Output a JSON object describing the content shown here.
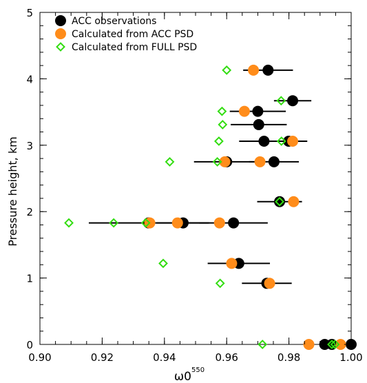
{
  "chart_data": {
    "type": "scatter",
    "xlabel": "ω0",
    "xlabel_sup": "550",
    "ylabel": "Pressure height, km",
    "xlim": [
      0.9,
      1.0
    ],
    "ylim": [
      0,
      5
    ],
    "x_ticks": [
      "0.90",
      "0.92",
      "0.94",
      "0.96",
      "0.98",
      "1.00"
    ],
    "y_ticks": [
      "0",
      "1",
      "2",
      "3",
      "4",
      "5"
    ],
    "x_tick_values": [
      0.9,
      0.92,
      0.94,
      0.96,
      0.98,
      1.0
    ],
    "y_tick_values": [
      0,
      1,
      2,
      3,
      4,
      5
    ],
    "grid": false,
    "legend_position": "top-left",
    "series": [
      {
        "name": "ACC observations",
        "marker": "filled-circle",
        "color": "#000000",
        "points": [
          {
            "x": 0.9733,
            "y": 4.13,
            "xerr": [
              0.9653,
              0.9813
            ]
          },
          {
            "x": 0.9812,
            "y": 3.67,
            "xerr": [
              0.9752,
              0.9872
            ]
          },
          {
            "x": 0.97,
            "y": 3.51,
            "xerr": [
              0.961,
              0.979
            ]
          },
          {
            "x": 0.9703,
            "y": 3.31,
            "xerr": [
              0.9613,
              0.9793
            ]
          },
          {
            "x": 0.972,
            "y": 3.06,
            "xerr": [
              0.964,
              0.98
            ]
          },
          {
            "x": 0.9799,
            "y": 3.06,
            "xerr": [
              0.972,
              0.9859
            ]
          },
          {
            "x": 0.96,
            "y": 2.75,
            "xerr": [
              0.9495,
              0.9705
            ]
          },
          {
            "x": 0.9752,
            "y": 2.75,
            "xerr": [
              0.9672,
              0.9832
            ]
          },
          {
            "x": 0.977,
            "y": 2.15,
            "xerr": [
              0.9698,
              0.9842
            ]
          },
          {
            "x": 0.9349,
            "y": 1.83,
            "xerr": [
              0.9157,
              0.9541
            ]
          },
          {
            "x": 0.946,
            "y": 1.83,
            "xerr": [
              0.9375,
              0.9545
            ]
          },
          {
            "x": 0.9622,
            "y": 1.83,
            "xerr": [
              0.9512,
              0.9732
            ]
          },
          {
            "x": 0.9639,
            "y": 1.22,
            "xerr": [
              0.9539,
              0.9739
            ]
          },
          {
            "x": 0.9729,
            "y": 0.92,
            "xerr": [
              0.9649,
              0.9809
            ]
          },
          {
            "x": 0.9915,
            "y": 0.0
          },
          {
            "x": 0.9938,
            "y": 0.0
          },
          {
            "x": 1.0,
            "y": 0.0
          }
        ]
      },
      {
        "name": "Calculated from ACC PSD",
        "marker": "filled-circle",
        "color": "#ff8c1a",
        "points": [
          {
            "x": 0.9686,
            "y": 4.13
          },
          {
            "x": 0.9657,
            "y": 3.51
          },
          {
            "x": 0.9812,
            "y": 3.06
          },
          {
            "x": 0.9707,
            "y": 2.75
          },
          {
            "x": 0.9594,
            "y": 2.75
          },
          {
            "x": 0.9815,
            "y": 2.15
          },
          {
            "x": 0.9353,
            "y": 1.83
          },
          {
            "x": 0.9442,
            "y": 1.83
          },
          {
            "x": 0.9577,
            "y": 1.83
          },
          {
            "x": 0.9616,
            "y": 1.22
          },
          {
            "x": 0.9738,
            "y": 0.92
          },
          {
            "x": 0.9864,
            "y": 0.0
          },
          {
            "x": 0.9966,
            "y": 0.0
          }
        ]
      },
      {
        "name": "Calculated from FULL PSD",
        "marker": "open-diamond",
        "color": "#33dd11",
        "points": [
          {
            "x": 0.96,
            "y": 4.13
          },
          {
            "x": 0.9775,
            "y": 3.67
          },
          {
            "x": 0.9585,
            "y": 3.51
          },
          {
            "x": 0.9587,
            "y": 3.31
          },
          {
            "x": 0.9575,
            "y": 3.06
          },
          {
            "x": 0.9776,
            "y": 3.06
          },
          {
            "x": 0.9417,
            "y": 2.75
          },
          {
            "x": 0.957,
            "y": 2.75
          },
          {
            "x": 0.977,
            "y": 2.15
          },
          {
            "x": 0.9093,
            "y": 1.83
          },
          {
            "x": 0.9237,
            "y": 1.83
          },
          {
            "x": 0.934,
            "y": 1.83
          },
          {
            "x": 0.9396,
            "y": 1.22
          },
          {
            "x": 0.9579,
            "y": 0.92
          },
          {
            "x": 0.9715,
            "y": 0.0
          },
          {
            "x": 0.9938,
            "y": 0.0
          },
          {
            "x": 0.9948,
            "y": 0.0
          }
        ]
      }
    ]
  }
}
